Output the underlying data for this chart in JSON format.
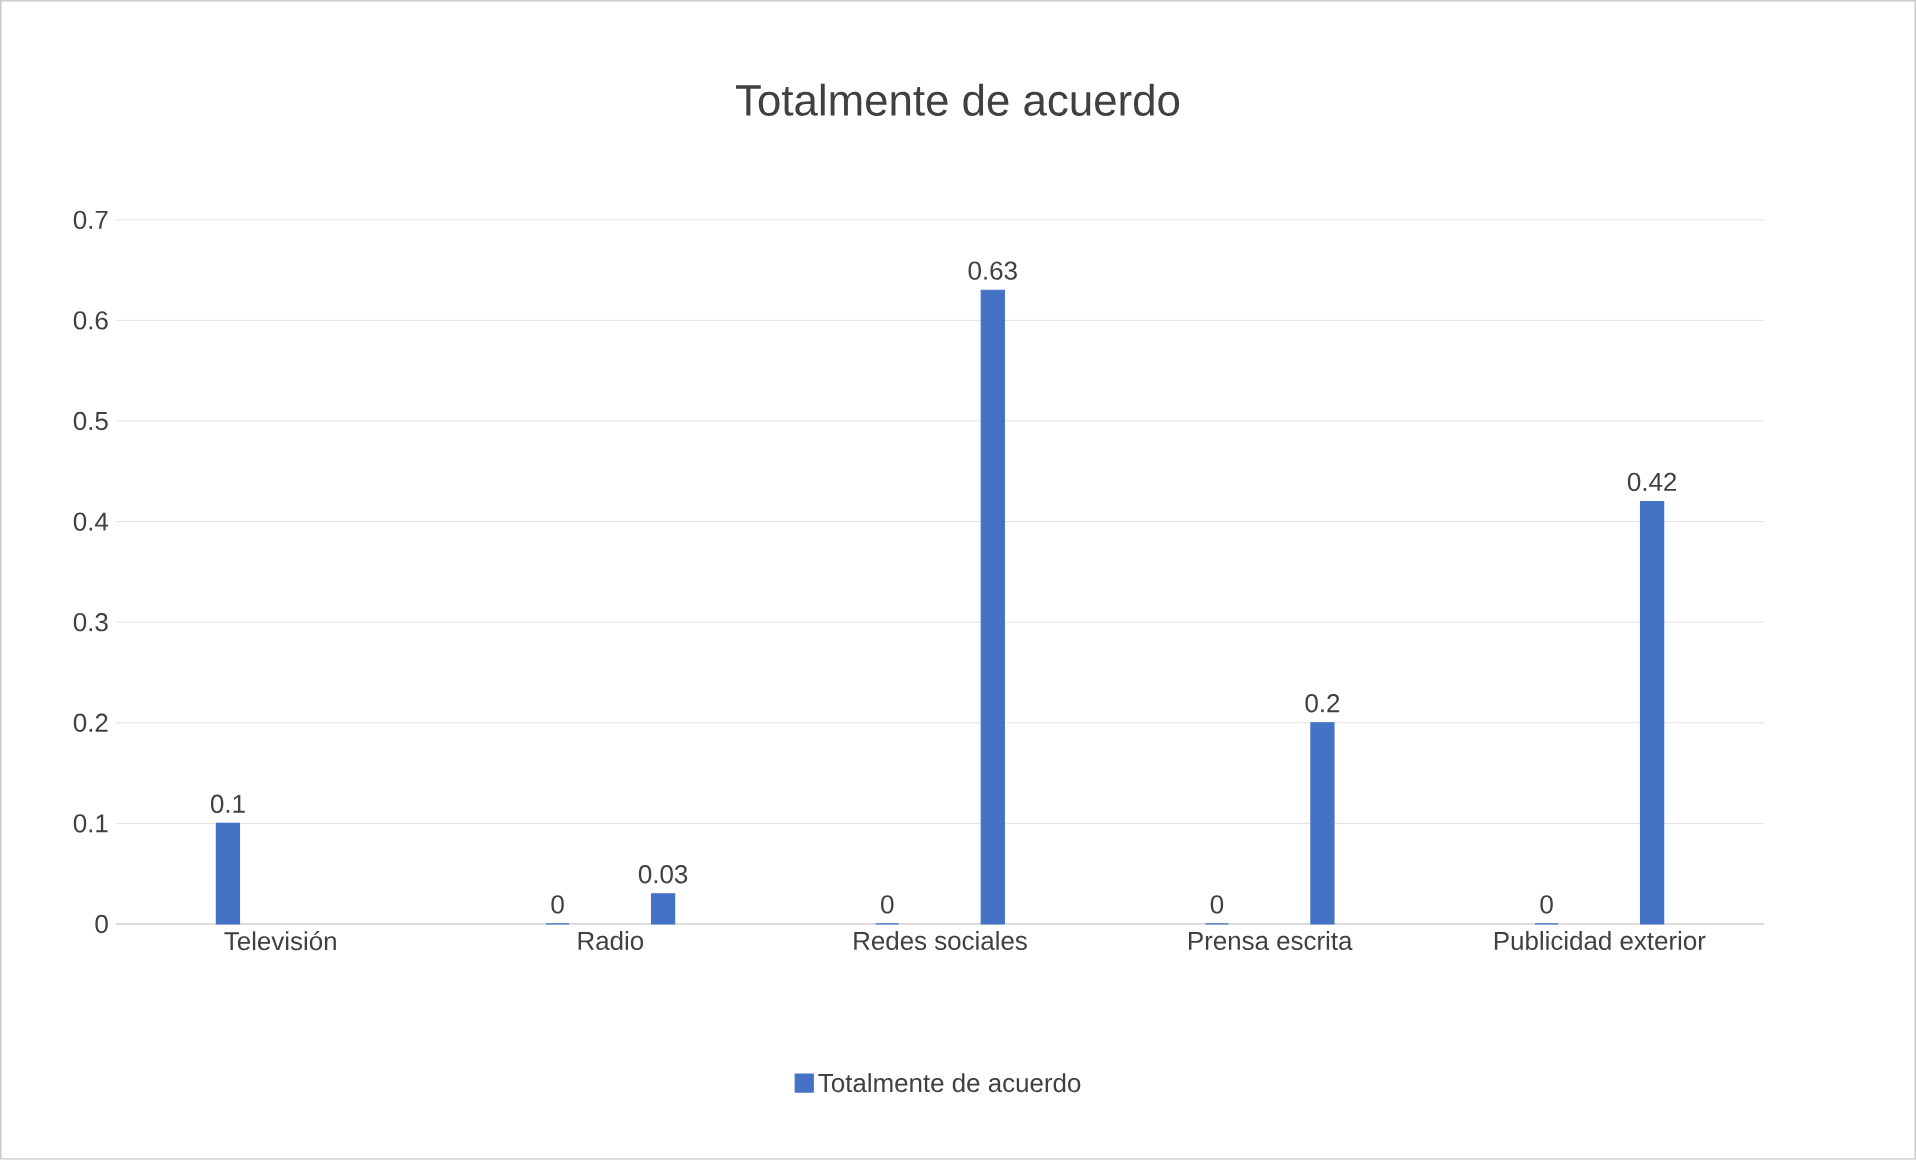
{
  "chart_data": {
    "type": "bar",
    "title": "Totalmente de acuerdo",
    "categories": [
      "Televisión",
      "Radio",
      "Redes sociales",
      "Prensa escrita",
      "Publicidad exterior"
    ],
    "series": [
      {
        "color": "#4472c4",
        "values": [
          0.1,
          0,
          0,
          0,
          0
        ]
      },
      {
        "name": "Totalmente de acuerdo",
        "color": "#4472c4",
        "values": [
          null,
          0.03,
          0.63,
          0.2,
          0.42
        ]
      }
    ],
    "ylim": [
      0,
      0.7
    ],
    "yticks": [
      0,
      0.1,
      0.2,
      0.3,
      0.4,
      0.5,
      0.6,
      0.7
    ],
    "grid": "y",
    "legend": "bottom",
    "data_labels": true
  }
}
